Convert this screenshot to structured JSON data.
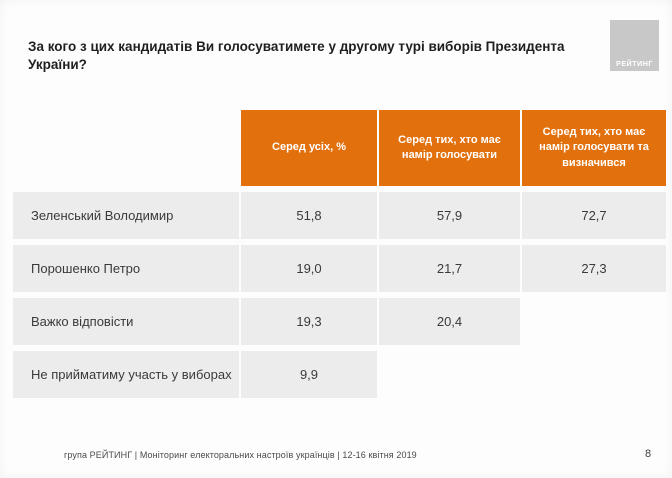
{
  "title": "За кого з цих кандидатів Ви голосуватимете у другому турі виборів Президента України?",
  "logo": {
    "label": "РЕЙТИНГ"
  },
  "chart_data": {
    "type": "table",
    "columns": [
      "Серед усіх, %",
      "Серед тих, хто має намір голосувати",
      "Серед тих, хто має намір голосувати та визначився"
    ],
    "rows": [
      {
        "label": "Зеленський Володимир",
        "values": [
          "51,8",
          "57,9",
          "72,7"
        ]
      },
      {
        "label": "Порошенко Петро",
        "values": [
          "19,0",
          "21,7",
          "27,3"
        ]
      },
      {
        "label": "Важко відповісти",
        "values": [
          "19,3",
          "20,4",
          ""
        ]
      },
      {
        "label": "Не прийматиму участь у виборах",
        "values": [
          "9,9",
          "",
          ""
        ]
      }
    ]
  },
  "footer": {
    "source": "група РЕЙТИНГ | Моніторинг електоральних настроїв українців | 12-16 квітня 2019",
    "page": "8"
  },
  "colors": {
    "accent": "#e2710d",
    "row-bg": "#ececec",
    "logo-bg": "#c8c8c8",
    "text": "#3a3a3a"
  }
}
